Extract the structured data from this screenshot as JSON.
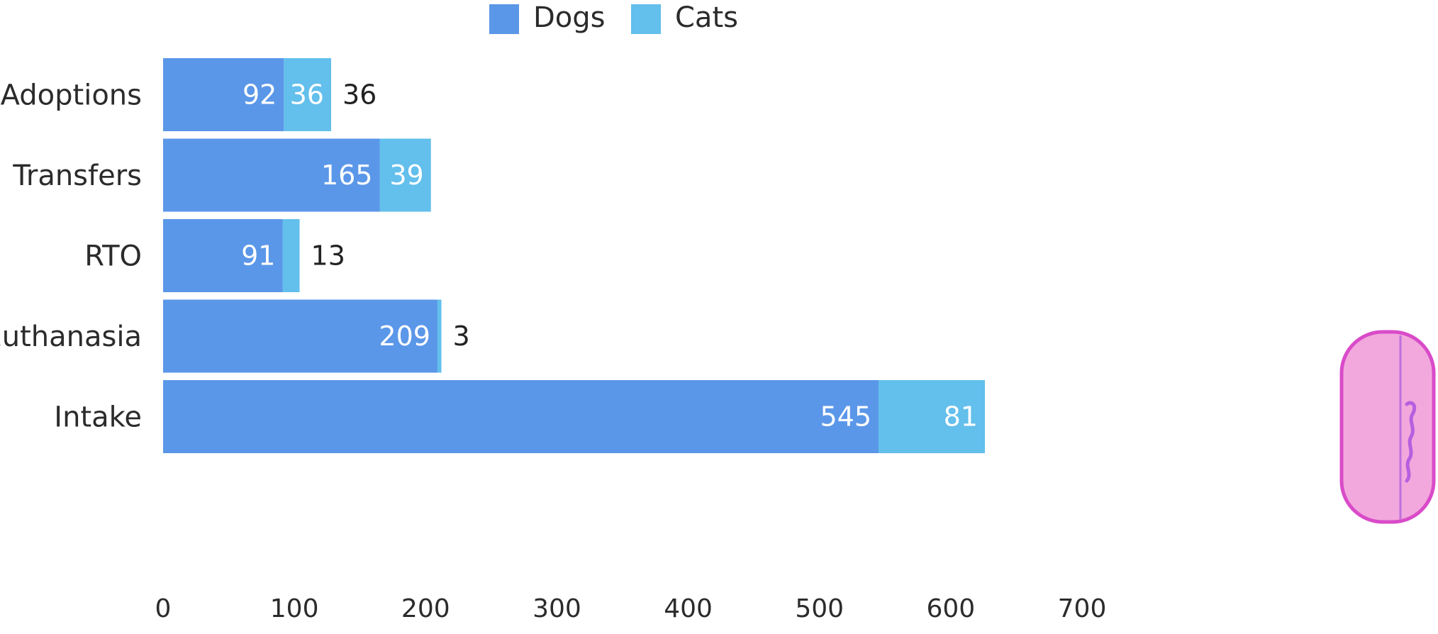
{
  "chart_data": {
    "type": "bar",
    "orientation": "horizontal",
    "stacked": true,
    "categories": [
      "Adoptions",
      "Transfers",
      "RTO",
      "Euthanasia",
      "Intake"
    ],
    "series": [
      {
        "name": "Dogs",
        "values": [
          92,
          165,
          91,
          209,
          545
        ],
        "color": "#5b97e8",
        "label_position": "inside"
      },
      {
        "name": "Cats",
        "values": [
          36,
          39,
          13,
          3,
          81
        ],
        "color": "#63bfec",
        "label_position": [
          "inside-outside",
          "inside",
          "outside",
          "outside",
          "inside"
        ]
      }
    ],
    "xlabel": "",
    "ylabel": "",
    "xlim": [
      0,
      700
    ],
    "xticks": [
      "0",
      "100",
      "200",
      "300",
      "400",
      "500",
      "600",
      "700"
    ],
    "grid": false,
    "legend": {
      "position": "top-center",
      "entries": [
        "Dogs",
        "Cats"
      ]
    },
    "title": ""
  },
  "annotation": {
    "icon": "pink-stamp-icon"
  }
}
